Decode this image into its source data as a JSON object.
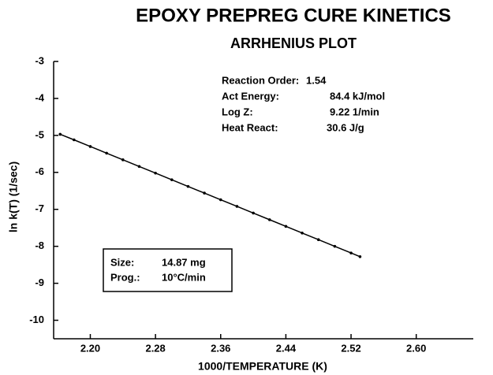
{
  "chart_data": {
    "type": "scatter",
    "title": "EPOXY PREPREG CURE KINETICS",
    "subtitle": "ARRHENIUS PLOT",
    "x_label": "1000/TEMPERATURE (K)",
    "y_label": "ln k(T) (1/sec)",
    "xlim": [
      2.155,
      2.67
    ],
    "ylim": [
      -10.5,
      -3
    ],
    "xticks": [
      {
        "value": 2.2,
        "label": "2.20"
      },
      {
        "value": 2.28,
        "label": "2.28"
      },
      {
        "value": 2.36,
        "label": "2.36"
      },
      {
        "value": 2.44,
        "label": "2.44"
      },
      {
        "value": 2.52,
        "label": "2.52"
      },
      {
        "value": 2.6,
        "label": "2.60"
      }
    ],
    "yticks": [
      -3,
      -4,
      -5,
      -6,
      -7,
      -8,
      -9,
      -10
    ],
    "color": "#000000",
    "x": [
      2.163,
      2.18,
      2.2,
      2.22,
      2.24,
      2.26,
      2.28,
      2.3,
      2.32,
      2.34,
      2.36,
      2.38,
      2.4,
      2.42,
      2.44,
      2.46,
      2.48,
      2.5,
      2.52,
      2.531
    ],
    "values": [
      -4.97,
      -5.12,
      -5.3,
      -5.48,
      -5.66,
      -5.84,
      -6.02,
      -6.2,
      -6.38,
      -6.56,
      -6.74,
      -6.92,
      -7.1,
      -7.28,
      -7.46,
      -7.64,
      -7.82,
      -8.0,
      -8.18,
      -8.28
    ],
    "results": [
      {
        "label": "Reaction Order:",
        "value": "1.54"
      },
      {
        "label": "Act Energy:",
        "value": "84.4 kJ/mol"
      },
      {
        "label": "Log Z:",
        "value": "9.22 1/min"
      },
      {
        "label": "Heat React:",
        "value": "30.6 J/g"
      }
    ],
    "sample": [
      {
        "label": "Size:",
        "value": "14.87 mg"
      },
      {
        "label": "Prog.:",
        "value": "10°C/min"
      }
    ]
  }
}
